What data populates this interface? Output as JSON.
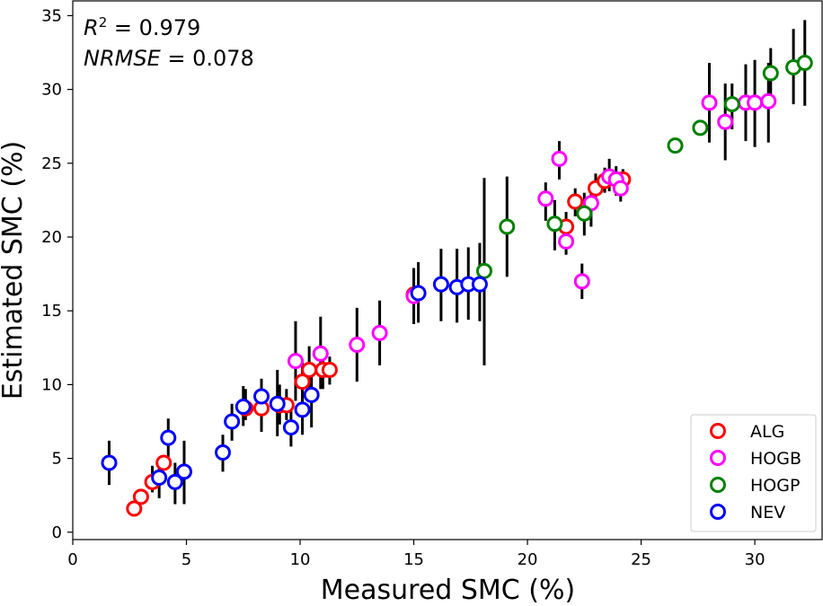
{
  "chart_data": {
    "type": "scatter",
    "xlabel": "Measured SMC (%)",
    "ylabel": "Estimated SMC (%)",
    "xlim": [
      0,
      33
    ],
    "ylim": [
      -0.5,
      36
    ],
    "xticks": [
      0,
      5,
      10,
      15,
      20,
      25,
      30
    ],
    "yticks": [
      0,
      5,
      10,
      15,
      20,
      25,
      30,
      35
    ],
    "grid": false,
    "legend_position": "bottom-right",
    "annotations": {
      "r2_label": "R",
      "r2_sup": "2",
      "r2_value": " = 0.979",
      "nrmse_label": "NRMSE",
      "nrmse_value": " = 0.078"
    },
    "series": [
      {
        "name": "ALG",
        "color": "#ff0000",
        "points": [
          {
            "x": 2.7,
            "y": 1.6,
            "err": [
              1.6,
              1.6
            ]
          },
          {
            "x": 3.0,
            "y": 2.4,
            "err": [
              2.4,
              2.4
            ]
          },
          {
            "x": 3.5,
            "y": 3.4,
            "err": [
              2.7,
              4.5
            ]
          },
          {
            "x": 4.0,
            "y": 4.7,
            "err": [
              4.7,
              4.7
            ]
          },
          {
            "x": 7.6,
            "y": 8.4,
            "err": [
              7.6,
              9.7
            ]
          },
          {
            "x": 8.3,
            "y": 8.4,
            "err": [
              6.8,
              10.0
            ]
          },
          {
            "x": 9.1,
            "y": 8.6,
            "err": [
              7.3,
              10.0
            ]
          },
          {
            "x": 9.4,
            "y": 8.6,
            "err": [
              7.6,
              9.7
            ]
          },
          {
            "x": 10.1,
            "y": 10.2,
            "err": [
              8.6,
              11.7
            ]
          },
          {
            "x": 10.4,
            "y": 11.0,
            "err": [
              9.4,
              12.6
            ]
          },
          {
            "x": 11.0,
            "y": 11.0,
            "err": [
              9.7,
              12.4
            ]
          },
          {
            "x": 11.3,
            "y": 11.0,
            "err": [
              10.0,
              11.9
            ]
          },
          {
            "x": 15.0,
            "y": 16.1,
            "err": [
              14.4,
              17.8
            ]
          },
          {
            "x": 21.7,
            "y": 20.7,
            "err": [
              19.7,
              21.7
            ]
          },
          {
            "x": 22.1,
            "y": 22.4,
            "err": [
              21.4,
              23.3
            ]
          },
          {
            "x": 23.0,
            "y": 23.3,
            "err": [
              22.4,
              24.3
            ]
          },
          {
            "x": 23.4,
            "y": 23.8,
            "err": [
              23.0,
              24.7
            ]
          },
          {
            "x": 24.2,
            "y": 23.9,
            "err": [
              23.2,
              24.6
            ]
          }
        ]
      },
      {
        "name": "HOGB",
        "color": "#ff00ff",
        "points": [
          {
            "x": 9.8,
            "y": 11.6,
            "err": [
              8.9,
              14.3
            ]
          },
          {
            "x": 10.9,
            "y": 12.1,
            "err": [
              9.7,
              14.6
            ]
          },
          {
            "x": 12.5,
            "y": 12.7,
            "err": [
              10.2,
              15.2
            ]
          },
          {
            "x": 13.5,
            "y": 13.5,
            "err": [
              11.3,
              15.7
            ]
          },
          {
            "x": 15.0,
            "y": 16.0,
            "err": [
              14.1,
              17.9
            ]
          },
          {
            "x": 20.8,
            "y": 22.6,
            "err": [
              21.1,
              23.7
            ]
          },
          {
            "x": 21.4,
            "y": 25.3,
            "err": [
              23.9,
              26.5
            ]
          },
          {
            "x": 21.7,
            "y": 19.7,
            "err": [
              18.8,
              20.4
            ]
          },
          {
            "x": 22.4,
            "y": 17.0,
            "err": [
              15.8,
              18.2
            ]
          },
          {
            "x": 22.8,
            "y": 22.3,
            "err": [
              20.7,
              23.6
            ]
          },
          {
            "x": 23.6,
            "y": 24.1,
            "err": [
              23.1,
              25.3
            ]
          },
          {
            "x": 23.9,
            "y": 23.9,
            "err": [
              22.8,
              24.8
            ]
          },
          {
            "x": 24.1,
            "y": 23.3,
            "err": [
              22.4,
              24.4
            ]
          },
          {
            "x": 28.0,
            "y": 29.1,
            "err": [
              26.4,
              31.8
            ]
          },
          {
            "x": 28.7,
            "y": 27.8,
            "err": [
              25.2,
              30.4
            ]
          },
          {
            "x": 29.6,
            "y": 29.1,
            "err": [
              26.5,
              31.7
            ]
          },
          {
            "x": 30.0,
            "y": 29.1,
            "err": [
              26.1,
              32.0
            ]
          },
          {
            "x": 30.6,
            "y": 29.2,
            "err": [
              26.4,
              31.8
            ]
          }
        ]
      },
      {
        "name": "HOGP",
        "color": "#008000",
        "points": [
          {
            "x": 18.1,
            "y": 17.7,
            "err": [
              11.3,
              24.0
            ]
          },
          {
            "x": 19.1,
            "y": 20.7,
            "err": [
              17.3,
              24.1
            ]
          },
          {
            "x": 21.2,
            "y": 20.9,
            "err": [
              19.1,
              22.5
            ]
          },
          {
            "x": 22.5,
            "y": 21.6,
            "err": [
              20.1,
              23.0
            ]
          },
          {
            "x": 26.5,
            "y": 26.2,
            "err": [
              26.2,
              26.2
            ]
          },
          {
            "x": 27.6,
            "y": 27.4,
            "err": [
              27.4,
              27.4
            ]
          },
          {
            "x": 29.0,
            "y": 29.0,
            "err": [
              27.3,
              30.4
            ]
          },
          {
            "x": 30.7,
            "y": 31.1,
            "err": [
              29.6,
              32.8
            ]
          },
          {
            "x": 31.7,
            "y": 31.5,
            "err": [
              29.0,
              34.1
            ]
          },
          {
            "x": 32.2,
            "y": 31.8,
            "err": [
              28.9,
              34.7
            ]
          }
        ]
      },
      {
        "name": "NEV",
        "color": "#0000ff",
        "points": [
          {
            "x": 1.6,
            "y": 4.7,
            "err": [
              3.2,
              6.2
            ]
          },
          {
            "x": 3.8,
            "y": 3.7,
            "err": [
              2.3,
              5.0
            ]
          },
          {
            "x": 4.2,
            "y": 6.4,
            "err": [
              5.1,
              7.7
            ]
          },
          {
            "x": 4.5,
            "y": 3.4,
            "err": [
              1.9,
              4.7
            ]
          },
          {
            "x": 4.9,
            "y": 4.1,
            "err": [
              1.9,
              6.2
            ]
          },
          {
            "x": 6.6,
            "y": 5.4,
            "err": [
              4.1,
              6.6
            ]
          },
          {
            "x": 7.0,
            "y": 7.5,
            "err": [
              6.2,
              8.7
            ]
          },
          {
            "x": 7.5,
            "y": 8.5,
            "err": [
              7.2,
              9.9
            ]
          },
          {
            "x": 8.3,
            "y": 9.2,
            "err": [
              7.9,
              10.4
            ]
          },
          {
            "x": 9.0,
            "y": 8.7,
            "err": [
              6.5,
              11.0
            ]
          },
          {
            "x": 9.6,
            "y": 7.1,
            "err": [
              5.8,
              8.5
            ]
          },
          {
            "x": 10.1,
            "y": 8.3,
            "err": [
              6.6,
              10.1
            ]
          },
          {
            "x": 10.5,
            "y": 9.3,
            "err": [
              7.1,
              11.5
            ]
          },
          {
            "x": 15.2,
            "y": 16.2,
            "err": [
              14.2,
              18.3
            ]
          },
          {
            "x": 16.2,
            "y": 16.8,
            "err": [
              14.3,
              19.2
            ]
          },
          {
            "x": 16.9,
            "y": 16.6,
            "err": [
              14.2,
              19.2
            ]
          },
          {
            "x": 17.4,
            "y": 16.8,
            "err": [
              14.4,
              19.3
            ]
          },
          {
            "x": 17.9,
            "y": 16.8,
            "err": [
              14.3,
              19.6
            ]
          }
        ]
      }
    ]
  }
}
